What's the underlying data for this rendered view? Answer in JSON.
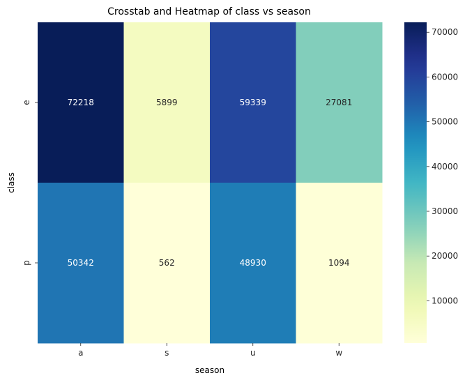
{
  "chart_data": {
    "type": "heatmap",
    "title": "Crosstab and Heatmap of class vs season",
    "xlabel": "season",
    "ylabel": "class",
    "x_categories": [
      "a",
      "s",
      "u",
      "w"
    ],
    "y_categories": [
      "e",
      "p"
    ],
    "values": [
      [
        72218,
        5899,
        59339,
        27081
      ],
      [
        50342,
        562,
        48930,
        1094
      ]
    ],
    "colormap": "YlGnBu",
    "color_range": [
      562,
      72218
    ],
    "colorbar_ticks": [
      10000,
      20000,
      30000,
      40000,
      50000,
      60000,
      70000
    ],
    "colorbar_tick_labels": [
      "10000",
      "20000",
      "30000",
      "40000",
      "50000",
      "60000",
      "70000"
    ],
    "annotate": true,
    "grid": false,
    "colorbar_position": "right"
  }
}
